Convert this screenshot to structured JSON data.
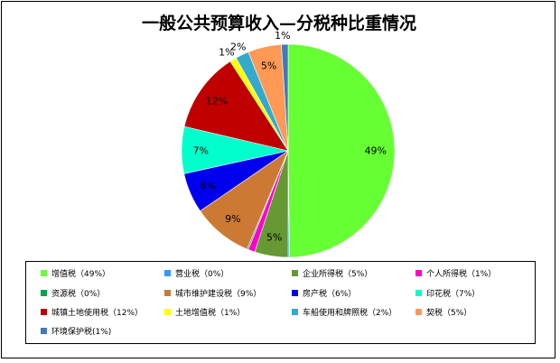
{
  "chart_data": {
    "type": "pie",
    "title": "一般公共预算收入—分税种比重情况",
    "slices": [
      {
        "name": "增值税",
        "value": 49,
        "label": "49%",
        "legend": "增值税（49%）",
        "color": "#66ff33"
      },
      {
        "name": "营业税",
        "value": 0.2,
        "label": "0%",
        "legend": "营业税（0%）",
        "color": "#3399ff"
      },
      {
        "name": "企业所得税",
        "value": 5,
        "label": "5%",
        "legend": "企业所得税（5%）",
        "color": "#669933"
      },
      {
        "name": "个人所得税",
        "value": 1,
        "label": "1%",
        "legend": "个人所得税（1%）",
        "color": "#ff00cc"
      },
      {
        "name": "资源税",
        "value": 0.2,
        "label": "0%",
        "legend": "资源税（0%）",
        "color": "#00a550"
      },
      {
        "name": "城市维护建设税",
        "value": 9,
        "label": "9%",
        "legend": "城市维护建设税（9%）",
        "color": "#cc7a33"
      },
      {
        "name": "房产税",
        "value": 6,
        "label": "6%",
        "legend": "房产税（6%）",
        "color": "#0000ee"
      },
      {
        "name": "印花税",
        "value": 7,
        "label": "7%",
        "legend": "印花税（7%）",
        "color": "#00ffcc"
      },
      {
        "name": "城镇土地使用税",
        "value": 12,
        "label": "12%",
        "legend": "城镇土地使用税（12%）",
        "color": "#c00000"
      },
      {
        "name": "土地增值税",
        "value": 1,
        "label": "1%",
        "legend": "土地增值税（1%）",
        "color": "#ffff00"
      },
      {
        "name": "车船使用和牌照税",
        "value": 2,
        "label": "2%",
        "legend": "车船使用和牌照税（2%）",
        "color": "#33aacc"
      },
      {
        "name": "契税",
        "value": 5,
        "label": "5%",
        "legend": "契税（5%）",
        "color": "#ff9955"
      },
      {
        "name": "环境保护税",
        "value": 1,
        "label": "1%",
        "legend": "环境保护税(1%)",
        "color": "#4477bb"
      }
    ],
    "legend_position": "bottom"
  }
}
